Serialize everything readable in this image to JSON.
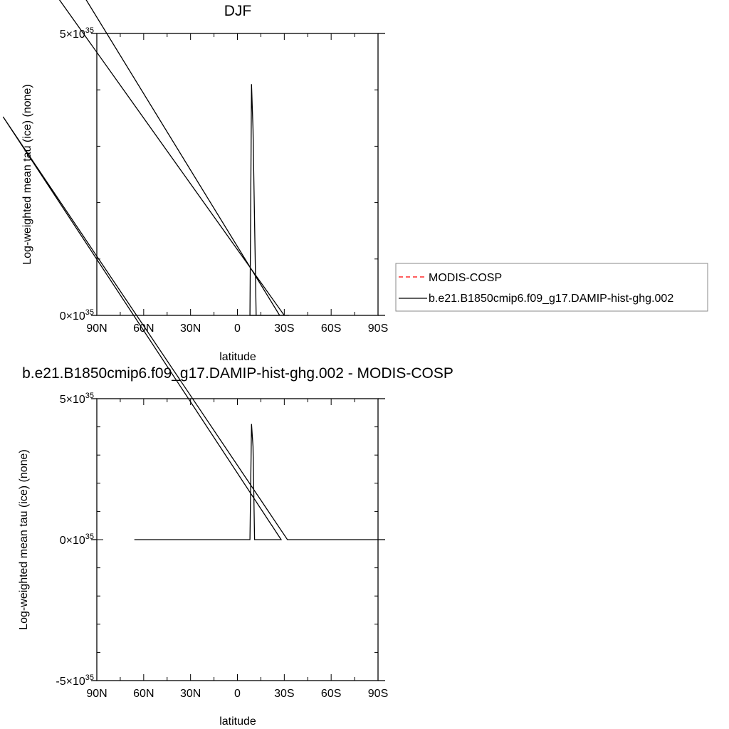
{
  "chart_data": [
    {
      "type": "line",
      "title": "DJF",
      "xlabel": "latitude",
      "ylabel": "Log-weighted mean tau (ice) (none)",
      "x_ticks": [
        "90N",
        "60N",
        "30N",
        "0",
        "30S",
        "60S",
        "90S"
      ],
      "y_ticks": [
        {
          "base": "0",
          "exp": "35"
        },
        {
          "base": "5",
          "exp": "35"
        }
      ],
      "xlim": [
        -90,
        90
      ],
      "ylim": [
        0,
        5e+35
      ],
      "series": [
        {
          "name": "MODIS-COSP",
          "color": "#ff0000",
          "dash": "dashed",
          "x": [],
          "y": []
        },
        {
          "name": "b.e21.B1850cmip6.f09_g17.DAMIP-hist-ghg.002",
          "color": "#000000",
          "dash": "solid",
          "x": [
            -150,
            30,
            33,
            8,
            9,
            10,
            12,
            27,
            -150
          ],
          "y": [
            7e+35,
            0,
            0,
            0,
            4.1e+35,
            3.3e+35,
            0,
            0,
            8e+35
          ]
        }
      ],
      "legend": "right"
    },
    {
      "type": "line",
      "title": "b.e21.B1850cmip6.f09_g17.DAMIP-hist-ghg.002 - MODIS-COSP",
      "xlabel": "latitude",
      "ylabel": "Log-weighted mean tau (ice) (none)",
      "x_ticks": [
        "90N",
        "60N",
        "30N",
        "0",
        "30S",
        "60S",
        "90S"
      ],
      "y_ticks": [
        {
          "base": "-5",
          "exp": "35"
        },
        {
          "base": "0",
          "exp": "35"
        },
        {
          "base": "5",
          "exp": "35"
        }
      ],
      "xlim": [
        -90,
        90
      ],
      "ylim": [
        -5e+35,
        5e+35
      ],
      "series": [
        {
          "name": "b.e21.B1850cmip6.f09_g17.DAMIP-hist-ghg.002",
          "color": "#000000",
          "dash": "solid",
          "x": [
            -66,
            8,
            9,
            10,
            11,
            28,
            -150,
            -150,
            32,
            90
          ],
          "y": [
            0,
            0,
            4.1e+35,
            3.3e+35,
            0,
            0,
            1.5e+36,
            1.5e+36,
            0,
            0
          ]
        }
      ]
    }
  ]
}
